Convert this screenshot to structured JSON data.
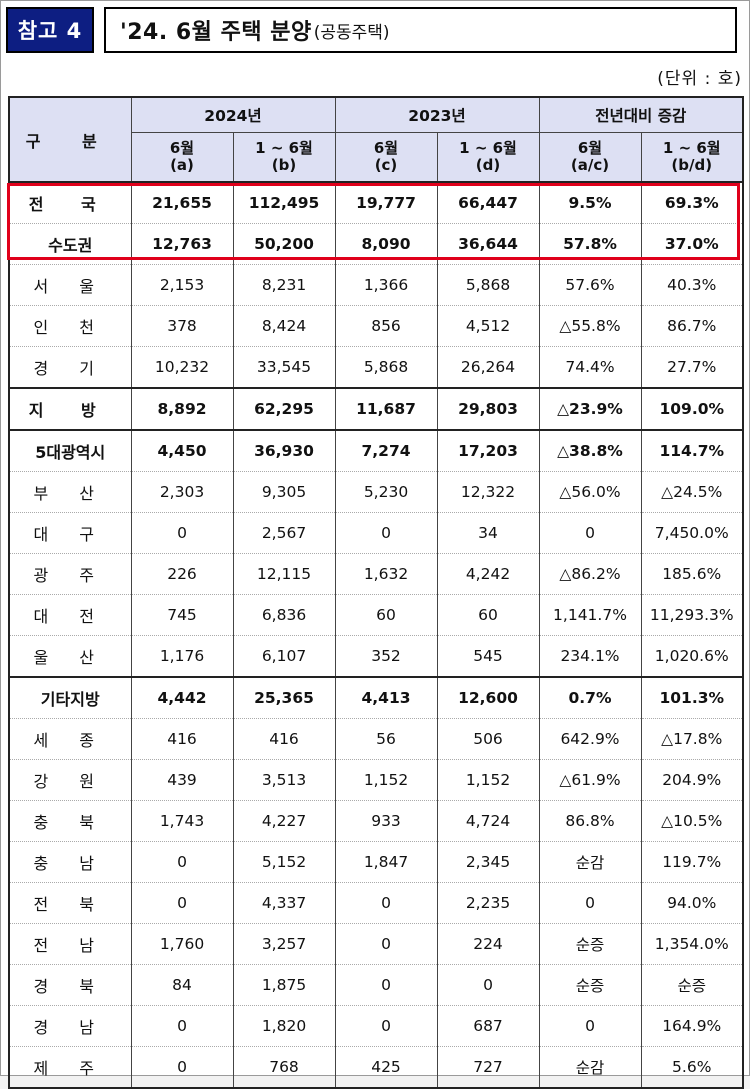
{
  "header": {
    "badge": "참고 4",
    "title": "'24. 6월 주택 분양",
    "subtitle": "(공동주택)"
  },
  "unit": "(단위 : 호)",
  "table": {
    "corner": "구 분",
    "groups": [
      "2024년",
      "2023년",
      "전년대비 증감"
    ],
    "subheads": [
      {
        "line1": "6월",
        "line2": "(a)"
      },
      {
        "line1": "1 ~ 6월",
        "line2": "(b)"
      },
      {
        "line1": "6월",
        "line2": "(c)"
      },
      {
        "line1": "1 ~ 6월",
        "line2": "(d)"
      },
      {
        "line1": "6월",
        "line2": "(a/c)"
      },
      {
        "line1": "1 ~ 6월",
        "line2": "(b/d)"
      }
    ],
    "rows": [
      {
        "name": "전 국",
        "v": [
          "21,655",
          "112,495",
          "19,777",
          "66,447",
          "9.5%",
          "69.3%"
        ]
      },
      {
        "name": "수도권",
        "v": [
          "12,763",
          "50,200",
          "8,090",
          "36,644",
          "57.8%",
          "37.0%"
        ]
      },
      {
        "name": "서 울",
        "v": [
          "2,153",
          "8,231",
          "1,366",
          "5,868",
          "57.6%",
          "40.3%"
        ]
      },
      {
        "name": "인 천",
        "v": [
          "378",
          "8,424",
          "856",
          "4,512",
          "△55.8%",
          "86.7%"
        ]
      },
      {
        "name": "경 기",
        "v": [
          "10,232",
          "33,545",
          "5,868",
          "26,264",
          "74.4%",
          "27.7%"
        ]
      },
      {
        "name": "지 방",
        "v": [
          "8,892",
          "62,295",
          "11,687",
          "29,803",
          "△23.9%",
          "109.0%"
        ]
      },
      {
        "name": "5대광역시",
        "v": [
          "4,450",
          "36,930",
          "7,274",
          "17,203",
          "△38.8%",
          "114.7%"
        ]
      },
      {
        "name": "부 산",
        "v": [
          "2,303",
          "9,305",
          "5,230",
          "12,322",
          "△56.0%",
          "△24.5%"
        ]
      },
      {
        "name": "대 구",
        "v": [
          "0",
          "2,567",
          "0",
          "34",
          "0",
          "7,450.0%"
        ]
      },
      {
        "name": "광 주",
        "v": [
          "226",
          "12,115",
          "1,632",
          "4,242",
          "△86.2%",
          "185.6%"
        ]
      },
      {
        "name": "대 전",
        "v": [
          "745",
          "6,836",
          "60",
          "60",
          "1,141.7%",
          "11,293.3%"
        ]
      },
      {
        "name": "울 산",
        "v": [
          "1,176",
          "6,107",
          "352",
          "545",
          "234.1%",
          "1,020.6%"
        ]
      },
      {
        "name": "기타지방",
        "v": [
          "4,442",
          "25,365",
          "4,413",
          "12,600",
          "0.7%",
          "101.3%"
        ]
      },
      {
        "name": "세 종",
        "v": [
          "416",
          "416",
          "56",
          "506",
          "642.9%",
          "△17.8%"
        ]
      },
      {
        "name": "강 원",
        "v": [
          "439",
          "3,513",
          "1,152",
          "1,152",
          "△61.9%",
          "204.9%"
        ]
      },
      {
        "name": "충 북",
        "v": [
          "1,743",
          "4,227",
          "933",
          "4,724",
          "86.8%",
          "△10.5%"
        ]
      },
      {
        "name": "충 남",
        "v": [
          "0",
          "5,152",
          "1,847",
          "2,345",
          "순감",
          "119.7%"
        ]
      },
      {
        "name": "전 북",
        "v": [
          "0",
          "4,337",
          "0",
          "2,235",
          "0",
          "94.0%"
        ]
      },
      {
        "name": "전 남",
        "v": [
          "1,760",
          "3,257",
          "0",
          "224",
          "순증",
          "1,354.0%"
        ]
      },
      {
        "name": "경 북",
        "v": [
          "84",
          "1,875",
          "0",
          "0",
          "순증",
          "순증"
        ]
      },
      {
        "name": "경 남",
        "v": [
          "0",
          "1,820",
          "0",
          "687",
          "0",
          "164.9%"
        ]
      },
      {
        "name": "제 주",
        "v": [
          "0",
          "768",
          "425",
          "727",
          "순감",
          "5.6%"
        ]
      }
    ]
  },
  "colors": {
    "badge_bg": "#0d1e82",
    "header_bg": "#dde0f3",
    "highlight": "#e0001b"
  }
}
